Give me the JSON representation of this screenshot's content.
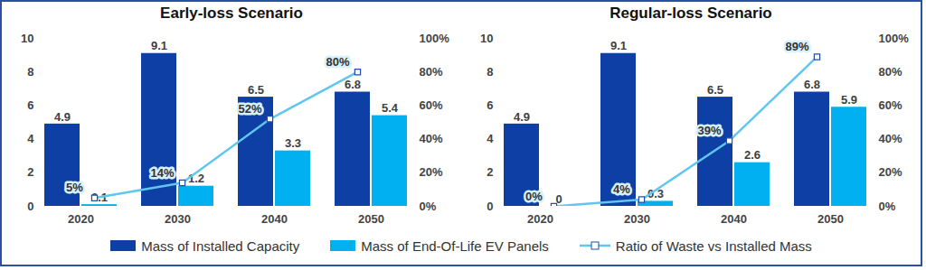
{
  "chart_data": [
    {
      "type": "bar",
      "title": "Early-loss Scenario",
      "categories": [
        "2020",
        "2030",
        "2040",
        "2050"
      ],
      "ylim": [
        0,
        10
      ],
      "yticks": [
        0,
        2,
        4,
        6,
        8,
        10
      ],
      "y2lim": [
        0,
        100
      ],
      "y2ticks": [
        {
          "value": 0,
          "label": "0%"
        },
        {
          "value": 20,
          "label": "20%"
        },
        {
          "value": 40,
          "label": "40%"
        },
        {
          "value": 60,
          "label": "60%"
        },
        {
          "value": 80,
          "label": "80%"
        },
        {
          "value": 100,
          "label": "100%"
        }
      ],
      "data_labels": true,
      "legend": "bottom",
      "series": [
        {
          "name": "Mass of Installed Capacity",
          "type": "bar",
          "color": "#0e3fa4",
          "values": [
            4.9,
            9.1,
            6.5,
            6.8
          ]
        },
        {
          "name": "Mass of End-Of-Life EV Panels",
          "type": "bar",
          "color": "#00b0f0",
          "values": [
            0.1,
            1.2,
            3.3,
            5.4
          ]
        },
        {
          "name": "Ratio of Waste vs Installed Mass",
          "type": "line",
          "axis": "y2",
          "color": "#5fc6f0",
          "marker": "square",
          "values": [
            5,
            14,
            52,
            80
          ],
          "value_labels": [
            "5%",
            "14%",
            "52%",
            "80%"
          ]
        }
      ]
    },
    {
      "type": "bar",
      "title": "Regular-loss Scenario",
      "categories": [
        "2020",
        "2030",
        "2040",
        "2050"
      ],
      "ylim": [
        0,
        10
      ],
      "yticks": [
        0,
        2,
        4,
        6,
        8,
        10
      ],
      "y2lim": [
        0,
        100
      ],
      "y2ticks": [
        {
          "value": 0,
          "label": "0%"
        },
        {
          "value": 20,
          "label": "20%"
        },
        {
          "value": 40,
          "label": "40%"
        },
        {
          "value": 60,
          "label": "60%"
        },
        {
          "value": 80,
          "label": "80%"
        },
        {
          "value": 100,
          "label": "100%"
        }
      ],
      "data_labels": true,
      "legend": "bottom",
      "series": [
        {
          "name": "Mass of Installed Capacity",
          "type": "bar",
          "color": "#0e3fa4",
          "values": [
            4.9,
            9.1,
            6.5,
            6.8
          ]
        },
        {
          "name": "Mass of End-Of-Life EV Panels",
          "type": "bar",
          "color": "#00b0f0",
          "values": [
            0,
            0.3,
            2.6,
            5.9
          ]
        },
        {
          "name": "Ratio of Waste vs Installed Mass",
          "type": "line",
          "axis": "y2",
          "color": "#5fc6f0",
          "marker": "square",
          "values": [
            0,
            4,
            39,
            89
          ],
          "value_labels": [
            "0%",
            "4%",
            "39%",
            "89%"
          ]
        }
      ]
    }
  ]
}
